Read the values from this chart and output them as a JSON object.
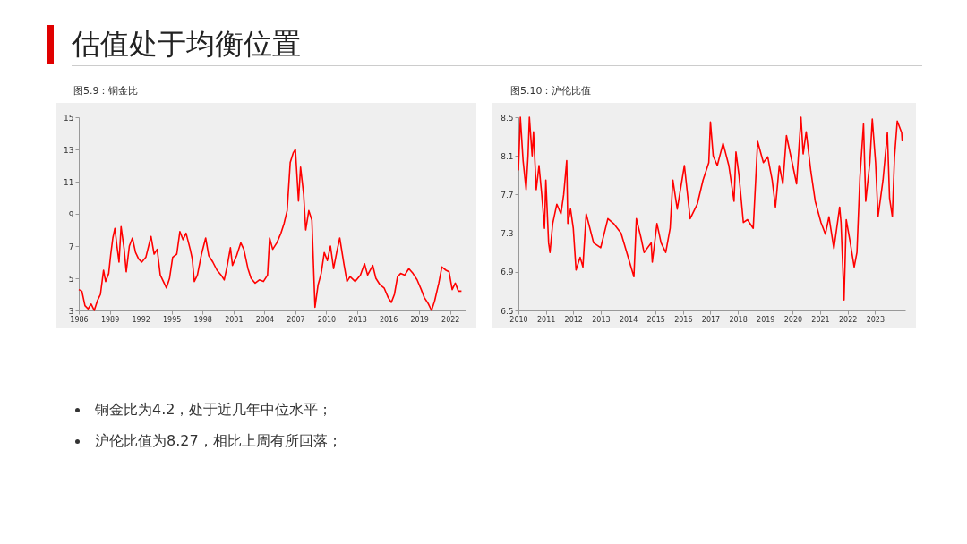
{
  "chart_data": [
    {
      "type": "other",
      "title": "估值处于均衡位置",
      "annotations": [
        "铜金比为4.2，处于近几年中位水平；",
        "沪伦比值为8.27，相比上周有所回落；"
      ]
    },
    {
      "type": "line",
      "title": "图5.9：铜金比",
      "color": "#ff0000",
      "xlim": [
        1986,
        2023.5
      ],
      "xticks": [
        1986,
        1989,
        1992,
        1995,
        1998,
        2001,
        2004,
        2007,
        2010,
        2013,
        2016,
        2019,
        2022
      ],
      "ylim": [
        3,
        15
      ],
      "yticks": [
        3,
        5,
        7,
        9,
        11,
        13,
        15
      ],
      "x": [
        1986.0,
        1986.3,
        1986.6,
        1986.9,
        1987.2,
        1987.5,
        1987.8,
        1988.1,
        1988.4,
        1988.6,
        1988.9,
        1989.1,
        1989.3,
        1989.5,
        1989.7,
        1989.9,
        1990.1,
        1990.4,
        1990.6,
        1990.9,
        1991.2,
        1991.5,
        1991.8,
        1992.1,
        1992.5,
        1993.0,
        1993.3,
        1993.6,
        1993.9,
        1994.2,
        1994.5,
        1994.8,
        1995.1,
        1995.5,
        1995.8,
        1996.1,
        1996.4,
        1996.8,
        1997.0,
        1997.2,
        1997.5,
        1997.9,
        1998.3,
        1998.6,
        1999.0,
        1999.4,
        1999.8,
        2000.1,
        2000.4,
        2000.7,
        2000.9,
        2001.3,
        2001.7,
        2002.0,
        2002.4,
        2002.7,
        2003.1,
        2003.5,
        2003.9,
        2004.3,
        2004.5,
        2004.8,
        2005.2,
        2005.6,
        2005.9,
        2006.2,
        2006.5,
        2006.8,
        2007.0,
        2007.3,
        2007.5,
        2007.8,
        2008.0,
        2008.3,
        2008.6,
        2008.9,
        2009.2,
        2009.5,
        2009.8,
        2010.1,
        2010.4,
        2010.7,
        2011.0,
        2011.3,
        2011.7,
        2012.0,
        2012.3,
        2012.8,
        2013.3,
        2013.7,
        2014.0,
        2014.5,
        2014.8,
        2015.2,
        2015.6,
        2016.0,
        2016.3,
        2016.6,
        2016.9,
        2017.2,
        2017.6,
        2018.0,
        2018.4,
        2018.8,
        2019.2,
        2019.5,
        2019.9,
        2020.2,
        2020.5,
        2020.9,
        2021.2,
        2021.6,
        2021.9,
        2022.2,
        2022.5,
        2022.8,
        2023.1
      ],
      "values": [
        4.3,
        4.2,
        3.3,
        3.1,
        3.4,
        3.0,
        3.6,
        4.0,
        5.5,
        4.8,
        5.3,
        6.5,
        7.5,
        8.1,
        7.0,
        6.0,
        8.2,
        6.8,
        5.4,
        7.0,
        7.5,
        6.6,
        6.2,
        6.0,
        6.3,
        7.6,
        6.5,
        6.8,
        5.2,
        4.8,
        4.4,
        5.0,
        6.3,
        6.5,
        7.9,
        7.4,
        7.8,
        6.8,
        6.2,
        4.8,
        5.2,
        6.5,
        7.5,
        6.4,
        6.0,
        5.5,
        5.2,
        4.9,
        5.8,
        6.9,
        5.8,
        6.4,
        7.2,
        6.8,
        5.6,
        5.0,
        4.7,
        4.9,
        4.8,
        5.2,
        7.5,
        6.8,
        7.2,
        7.8,
        8.4,
        9.2,
        12.2,
        12.8,
        13.0,
        9.8,
        11.9,
        10.2,
        8.0,
        9.2,
        8.6,
        3.2,
        4.6,
        5.3,
        6.6,
        6.1,
        7.0,
        5.6,
        6.6,
        7.5,
        5.9,
        4.8,
        5.1,
        4.8,
        5.2,
        5.9,
        5.2,
        5.8,
        5.0,
        4.6,
        4.4,
        3.8,
        3.5,
        4.0,
        5.1,
        5.3,
        5.2,
        5.6,
        5.3,
        4.9,
        4.3,
        3.8,
        3.4,
        3.0,
        3.6,
        4.7,
        5.7,
        5.5,
        5.4,
        4.3,
        4.7,
        4.2,
        4.2
      ]
    },
    {
      "type": "line",
      "title": "图5.10：沪伦比值",
      "color": "#ff0000",
      "xlim": [
        2010,
        2024.1
      ],
      "xticks": [
        2010,
        2011,
        2012,
        2013,
        2014,
        2015,
        2016,
        2017,
        2018,
        2019,
        2020,
        2021,
        2022,
        2023
      ],
      "ylim": [
        6.5,
        8.5
      ],
      "yticks": [
        6.5,
        6.9,
        7.3,
        7.7,
        8.1,
        8.5
      ],
      "x": [
        2010.0,
        2010.07,
        2010.17,
        2010.28,
        2010.35,
        2010.4,
        2010.5,
        2010.55,
        2010.65,
        2010.75,
        2010.85,
        2010.95,
        2011.0,
        2011.1,
        2011.15,
        2011.25,
        2011.4,
        2011.55,
        2011.65,
        2011.76,
        2011.8,
        2011.9,
        2012.0,
        2012.1,
        2012.25,
        2012.35,
        2012.47,
        2012.74,
        2013.0,
        2013.26,
        2013.47,
        2013.74,
        2014.0,
        2014.21,
        2014.3,
        2014.47,
        2014.58,
        2014.84,
        2014.88,
        2015.05,
        2015.2,
        2015.37,
        2015.53,
        2015.63,
        2015.79,
        2016.05,
        2016.26,
        2016.52,
        2016.73,
        2016.94,
        2017.0,
        2017.1,
        2017.25,
        2017.46,
        2017.67,
        2017.86,
        2017.93,
        2018.04,
        2018.2,
        2018.35,
        2018.56,
        2018.72,
        2018.93,
        2019.09,
        2019.25,
        2019.37,
        2019.51,
        2019.64,
        2019.77,
        2019.98,
        2020.14,
        2020.3,
        2020.38,
        2020.49,
        2020.66,
        2020.82,
        2021.03,
        2021.19,
        2021.32,
        2021.5,
        2021.71,
        2021.76,
        2021.87,
        2021.95,
        2022.08,
        2022.24,
        2022.34,
        2022.45,
        2022.58,
        2022.66,
        2022.81,
        2022.9,
        2023.02,
        2023.11,
        2023.29,
        2023.45,
        2023.53,
        2023.63,
        2023.71,
        2023.81,
        2023.97,
        2023.99
      ],
      "values": [
        7.95,
        8.5,
        8.05,
        7.75,
        8.1,
        8.5,
        8.1,
        8.35,
        7.75,
        8.0,
        7.7,
        7.35,
        7.85,
        7.2,
        7.1,
        7.4,
        7.6,
        7.5,
        7.7,
        8.05,
        7.4,
        7.55,
        7.35,
        6.92,
        7.05,
        6.95,
        7.5,
        7.2,
        7.15,
        7.45,
        7.4,
        7.3,
        7.05,
        6.85,
        7.45,
        7.25,
        7.1,
        7.2,
        7.0,
        7.4,
        7.2,
        7.1,
        7.35,
        7.85,
        7.55,
        8.0,
        7.45,
        7.6,
        7.85,
        8.03,
        8.45,
        8.1,
        8.0,
        8.23,
        8.0,
        7.63,
        8.14,
        7.9,
        7.41,
        7.44,
        7.35,
        8.25,
        8.03,
        8.09,
        7.85,
        7.57,
        8.0,
        7.81,
        8.31,
        8.03,
        7.81,
        8.5,
        8.12,
        8.35,
        7.94,
        7.63,
        7.41,
        7.29,
        7.47,
        7.14,
        7.57,
        7.41,
        6.61,
        7.44,
        7.23,
        6.95,
        7.1,
        7.88,
        8.43,
        7.63,
        8.03,
        8.48,
        8.03,
        7.47,
        7.85,
        8.34,
        7.66,
        7.47,
        8.09,
        8.46,
        8.34,
        8.25
      ]
    }
  ]
}
